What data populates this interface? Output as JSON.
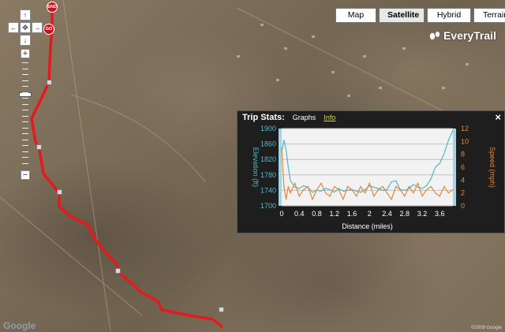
{
  "map": {
    "types": [
      "Map",
      "Satellite",
      "Hybrid",
      "Terrain"
    ],
    "active_type": "Satellite",
    "logo": "EveryTrail",
    "start_marker": "GO",
    "end_marker": "END",
    "google_mark": "Google",
    "copyright": "©2009 Google"
  },
  "panel": {
    "title": "Trip Stats:",
    "tabs": [
      "Graphs",
      "Info"
    ],
    "close": "×"
  },
  "colors": {
    "route": "#e8181e",
    "elevation": "#4fb8c9",
    "speed": "#e2883a",
    "panel_bg": "#1e1e1e"
  },
  "chart_data": {
    "type": "line",
    "xlabel": "Distance (miles)",
    "ylabel_left": "Elevation (ft)",
    "ylabel_right": "Speed (mph)",
    "x_ticks": [
      "0",
      "0.4",
      "0.8",
      "1.2",
      "1.6",
      "2",
      "2.4",
      "2.8",
      "3.2",
      "3.6"
    ],
    "y_left_ticks": [
      "1700",
      "1740",
      "1780",
      "1820",
      "1860",
      "1900"
    ],
    "y_right_ticks": [
      "0",
      "2",
      "4",
      "6",
      "8",
      "10",
      "12"
    ],
    "xlim": [
      0,
      3.9
    ],
    "ylim_left": [
      1700,
      1900
    ],
    "ylim_right": [
      0,
      12
    ],
    "series": [
      {
        "name": "Elevation (ft)",
        "axis": "left",
        "x": [
          0,
          0.05,
          0.1,
          0.15,
          0.2,
          0.3,
          0.4,
          0.5,
          0.6,
          0.7,
          0.8,
          0.9,
          1.0,
          1.1,
          1.2,
          1.3,
          1.4,
          1.5,
          1.6,
          1.7,
          1.8,
          1.9,
          2.0,
          2.1,
          2.2,
          2.3,
          2.4,
          2.5,
          2.6,
          2.7,
          2.8,
          2.9,
          3.0,
          3.1,
          3.2,
          3.3,
          3.4,
          3.5,
          3.6,
          3.7,
          3.8,
          3.9
        ],
        "y": [
          1840,
          1870,
          1845,
          1800,
          1765,
          1748,
          1745,
          1752,
          1748,
          1735,
          1740,
          1738,
          1745,
          1742,
          1735,
          1745,
          1738,
          1740,
          1742,
          1738,
          1735,
          1742,
          1752,
          1748,
          1745,
          1740,
          1742,
          1762,
          1765,
          1742,
          1740,
          1745,
          1755,
          1748,
          1745,
          1752,
          1770,
          1800,
          1810,
          1835,
          1870,
          1895
        ]
      },
      {
        "name": "Speed (mph)",
        "axis": "right",
        "x": [
          0,
          0.05,
          0.1,
          0.15,
          0.2,
          0.3,
          0.4,
          0.5,
          0.6,
          0.7,
          0.8,
          0.9,
          1.0,
          1.1,
          1.2,
          1.3,
          1.4,
          1.5,
          1.6,
          1.7,
          1.8,
          1.9,
          2.0,
          2.1,
          2.2,
          2.3,
          2.4,
          2.5,
          2.6,
          2.7,
          2.8,
          2.9,
          3.0,
          3.1,
          3.2,
          3.3,
          3.4,
          3.5,
          3.6,
          3.7,
          3.8,
          3.9
        ],
        "y": [
          9,
          3,
          1,
          3,
          2,
          3.5,
          1.5,
          2.5,
          3,
          1,
          2.5,
          3.5,
          2,
          1.5,
          3,
          2.5,
          1,
          3,
          2.5,
          1.5,
          3,
          2,
          3.5,
          1.5,
          2.5,
          3,
          2,
          1,
          3,
          2.5,
          1.5,
          3,
          2,
          3.5,
          1.5,
          2.5,
          3,
          2,
          1.5,
          3,
          2,
          2.5
        ]
      }
    ],
    "grid": true
  }
}
